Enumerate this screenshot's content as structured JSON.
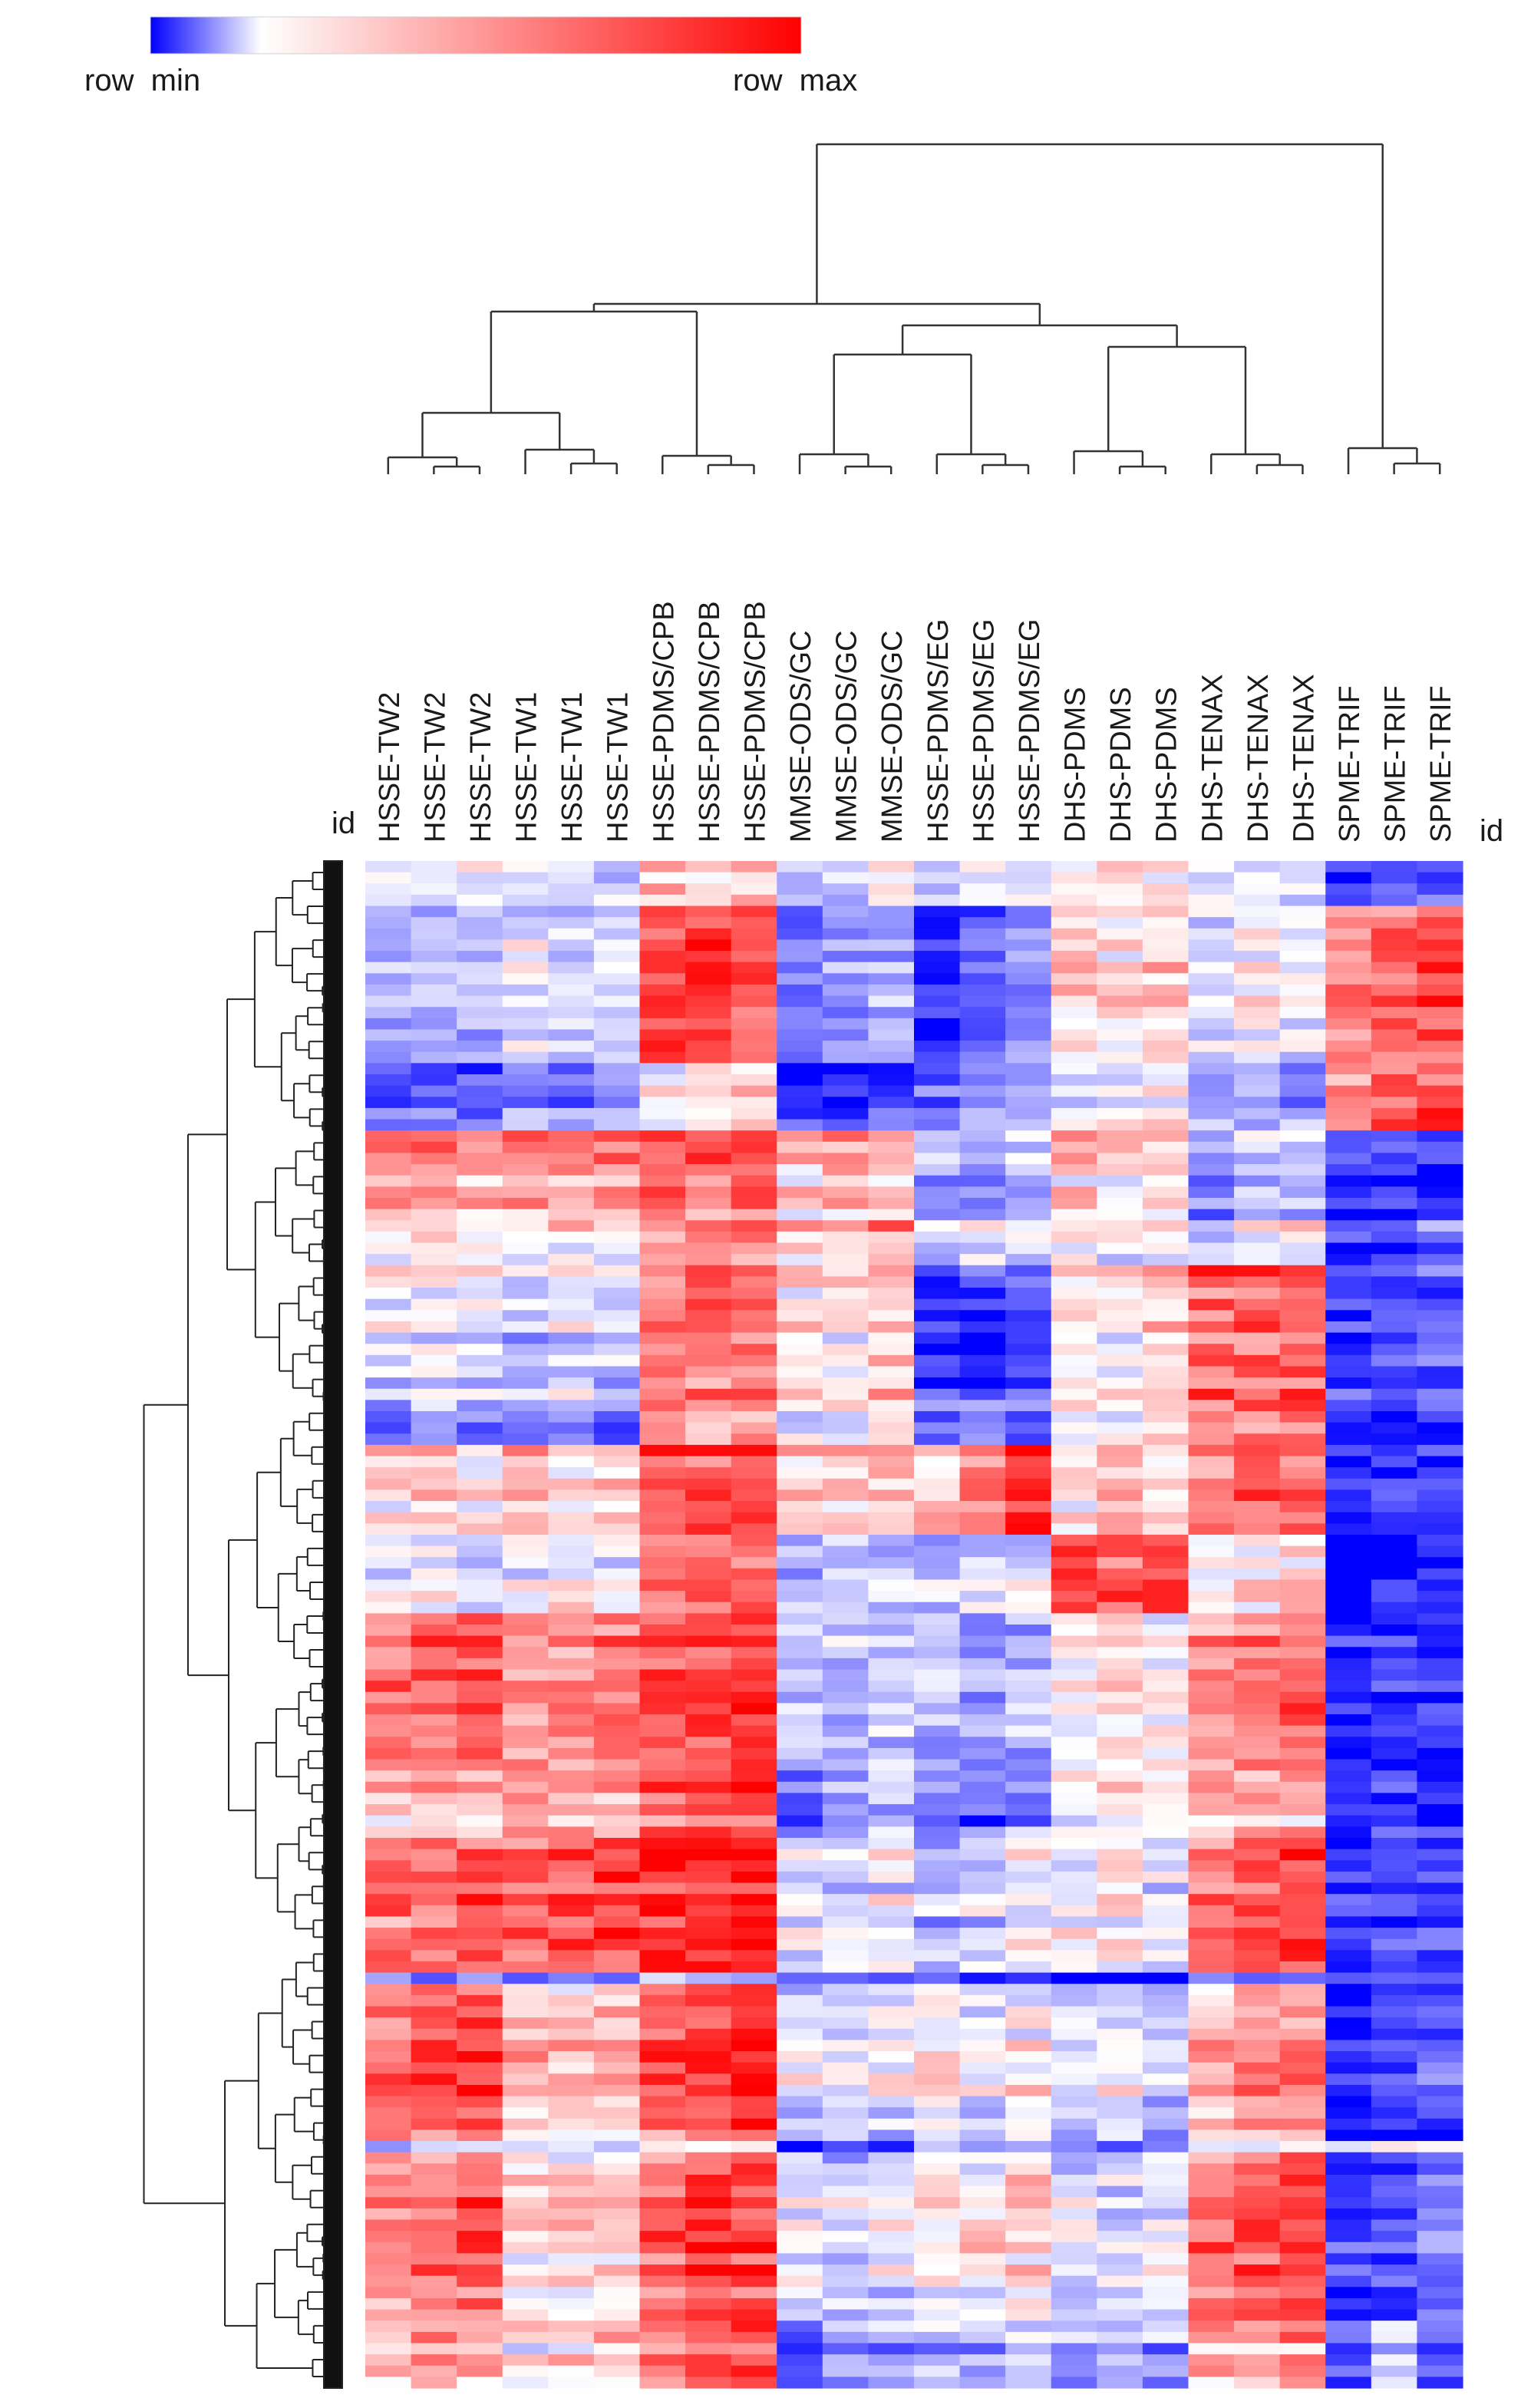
{
  "colorbar": {
    "min_label": "row  min",
    "max_label": "row  max",
    "min_color": "#0000ff",
    "mid_color": "#ffffff",
    "max_color": "#ff0000"
  },
  "chart_data": {
    "type": "heatmap",
    "row_label_left": "id",
    "row_label_right": "id",
    "normalization": "row",
    "columns": [
      "HSSE-TW2",
      "HSSE-TW2",
      "HSSE-TW2",
      "HSSE-TW1",
      "HSSE-TW1",
      "HSSE-TW1",
      "HSSE-PDMS/CPB",
      "HSSE-PDMS/CPB",
      "HSSE-PDMS/CPB",
      "MMSE-ODS/GC",
      "MMSE-ODS/GC",
      "MMSE-ODS/GC",
      "HSSE-PDMS/EG",
      "HSSE-PDMS/EG",
      "HSSE-PDMS/EG",
      "DHS-PDMS",
      "DHS-PDMS",
      "DHS-PDMS",
      "DHS-TENAX",
      "DHS-TENAX",
      "DHS-TENAX",
      "SPME-TRIF",
      "SPME-TRIF",
      "SPME-TRIF"
    ],
    "row_blocks": [
      {
        "rows": 4,
        "values": [
          0.45,
          0.4,
          0.45,
          0.45,
          0.4,
          0.4,
          0.6,
          0.55,
          0.6,
          0.35,
          0.4,
          0.5,
          0.4,
          0.5,
          0.45,
          0.5,
          0.55,
          0.5,
          0.4,
          0.45,
          0.4,
          0.1,
          0.15,
          0.2
        ]
      },
      {
        "rows": 14,
        "values": [
          0.3,
          0.35,
          0.3,
          0.4,
          0.35,
          0.35,
          0.8,
          0.85,
          0.8,
          0.2,
          0.25,
          0.3,
          0.05,
          0.15,
          0.25,
          0.55,
          0.5,
          0.55,
          0.4,
          0.45,
          0.4,
          0.7,
          0.75,
          0.8
        ]
      },
      {
        "rows": 6,
        "values": [
          0.2,
          0.25,
          0.2,
          0.3,
          0.25,
          0.3,
          0.5,
          0.55,
          0.6,
          0.1,
          0.05,
          0.15,
          0.25,
          0.3,
          0.35,
          0.5,
          0.45,
          0.5,
          0.3,
          0.35,
          0.3,
          0.75,
          0.85,
          0.85
        ]
      },
      {
        "rows": 8,
        "values": [
          0.7,
          0.75,
          0.7,
          0.7,
          0.7,
          0.75,
          0.8,
          0.8,
          0.85,
          0.6,
          0.65,
          0.6,
          0.35,
          0.3,
          0.35,
          0.6,
          0.55,
          0.6,
          0.3,
          0.35,
          0.4,
          0.1,
          0.1,
          0.1
        ]
      },
      {
        "rows": 4,
        "values": [
          0.55,
          0.6,
          0.55,
          0.5,
          0.55,
          0.5,
          0.7,
          0.75,
          0.75,
          0.6,
          0.65,
          0.7,
          0.45,
          0.5,
          0.45,
          0.55,
          0.5,
          0.55,
          0.4,
          0.5,
          0.5,
          0.15,
          0.1,
          0.2
        ]
      },
      {
        "rows": 12,
        "values": [
          0.45,
          0.5,
          0.45,
          0.4,
          0.45,
          0.4,
          0.75,
          0.8,
          0.8,
          0.55,
          0.55,
          0.6,
          0.1,
          0.1,
          0.15,
          0.55,
          0.55,
          0.6,
          0.8,
          0.8,
          0.85,
          0.1,
          0.15,
          0.2
        ]
      },
      {
        "rows": 4,
        "values": [
          0.3,
          0.35,
          0.3,
          0.25,
          0.3,
          0.25,
          0.7,
          0.75,
          0.75,
          0.5,
          0.55,
          0.55,
          0.25,
          0.3,
          0.25,
          0.6,
          0.55,
          0.6,
          0.75,
          0.8,
          0.8,
          0.1,
          0.15,
          0.15
        ]
      },
      {
        "rows": 8,
        "values": [
          0.55,
          0.6,
          0.55,
          0.6,
          0.55,
          0.6,
          0.8,
          0.8,
          0.85,
          0.55,
          0.6,
          0.6,
          0.6,
          0.75,
          0.85,
          0.55,
          0.6,
          0.55,
          0.75,
          0.8,
          0.8,
          0.05,
          0.1,
          0.1
        ]
      },
      {
        "rows": 7,
        "values": [
          0.45,
          0.5,
          0.45,
          0.5,
          0.55,
          0.5,
          0.8,
          0.8,
          0.85,
          0.4,
          0.45,
          0.4,
          0.4,
          0.45,
          0.45,
          0.9,
          0.85,
          0.95,
          0.55,
          0.55,
          0.6,
          0.05,
          0.1,
          0.1
        ]
      },
      {
        "rows": 14,
        "values": [
          0.8,
          0.8,
          0.85,
          0.7,
          0.7,
          0.75,
          0.85,
          0.85,
          0.9,
          0.4,
          0.35,
          0.4,
          0.35,
          0.3,
          0.35,
          0.5,
          0.55,
          0.5,
          0.7,
          0.75,
          0.8,
          0.05,
          0.1,
          0.1
        ]
      },
      {
        "rows": 6,
        "values": [
          0.6,
          0.65,
          0.6,
          0.65,
          0.6,
          0.65,
          0.8,
          0.85,
          0.85,
          0.2,
          0.3,
          0.35,
          0.25,
          0.2,
          0.3,
          0.5,
          0.55,
          0.5,
          0.6,
          0.65,
          0.65,
          0.05,
          0.1,
          0.1
        ]
      },
      {
        "rows": 12,
        "values": [
          0.75,
          0.75,
          0.8,
          0.75,
          0.8,
          0.85,
          0.9,
          0.9,
          0.95,
          0.4,
          0.45,
          0.45,
          0.35,
          0.4,
          0.45,
          0.45,
          0.5,
          0.45,
          0.75,
          0.8,
          0.85,
          0.05,
          0.1,
          0.1
        ]
      },
      {
        "rows": 1,
        "values": [
          0.3,
          0.3,
          0.3,
          0.3,
          0.3,
          0.3,
          0.4,
          0.4,
          0.4,
          0.2,
          0.2,
          0.2,
          0.2,
          0.2,
          0.2,
          0.1,
          0.1,
          0.1,
          0.3,
          0.3,
          0.3,
          0.3,
          0.3,
          0.3
        ]
      },
      {
        "rows": 14,
        "values": [
          0.75,
          0.8,
          0.85,
          0.6,
          0.6,
          0.65,
          0.8,
          0.85,
          0.9,
          0.45,
          0.4,
          0.45,
          0.5,
          0.45,
          0.5,
          0.4,
          0.45,
          0.4,
          0.65,
          0.7,
          0.7,
          0.05,
          0.1,
          0.15
        ]
      },
      {
        "rows": 1,
        "values": [
          0.35,
          0.35,
          0.35,
          0.4,
          0.4,
          0.4,
          0.5,
          0.5,
          0.5,
          0.05,
          0.05,
          0.1,
          0.3,
          0.3,
          0.3,
          0.2,
          0.2,
          0.2,
          0.4,
          0.4,
          0.4,
          0.5,
          0.5,
          0.5
        ]
      },
      {
        "rows": 15,
        "values": [
          0.7,
          0.75,
          0.8,
          0.55,
          0.55,
          0.6,
          0.8,
          0.85,
          0.85,
          0.45,
          0.4,
          0.45,
          0.5,
          0.5,
          0.55,
          0.4,
          0.4,
          0.45,
          0.75,
          0.8,
          0.85,
          0.1,
          0.15,
          0.2
        ]
      },
      {
        "rows": 6,
        "values": [
          0.6,
          0.65,
          0.6,
          0.55,
          0.55,
          0.6,
          0.7,
          0.75,
          0.8,
          0.15,
          0.25,
          0.3,
          0.35,
          0.3,
          0.35,
          0.3,
          0.35,
          0.3,
          0.6,
          0.65,
          0.7,
          0.1,
          0.4,
          0.2
        ]
      }
    ]
  }
}
